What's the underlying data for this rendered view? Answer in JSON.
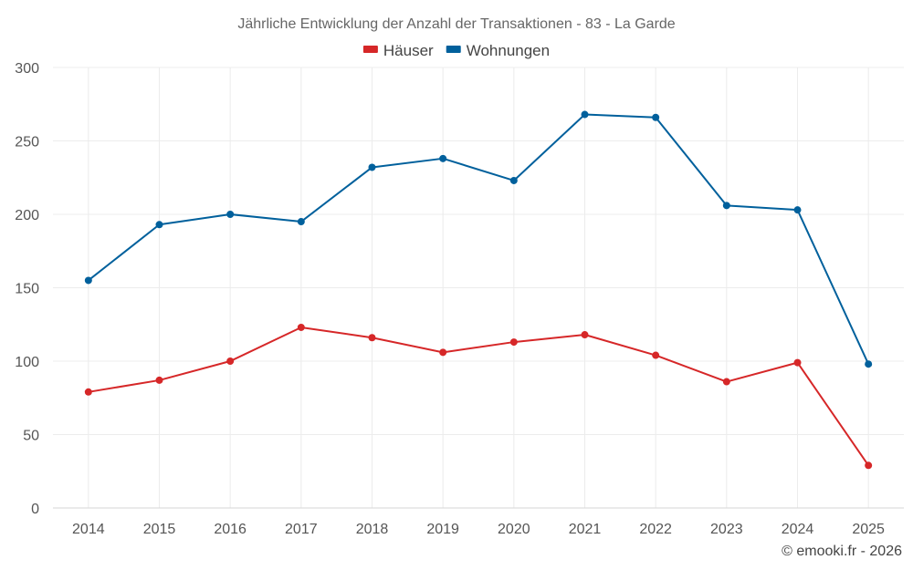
{
  "chart_data": {
    "type": "line",
    "title": "Jährliche Entwicklung der Anzahl der Transaktionen - 83 - La Garde",
    "xlabel": "",
    "ylabel": "",
    "categories": [
      "2014",
      "2015",
      "2016",
      "2017",
      "2018",
      "2019",
      "2020",
      "2021",
      "2022",
      "2023",
      "2024",
      "2025"
    ],
    "ylim": [
      0,
      300
    ],
    "yticks": [
      0,
      50,
      100,
      150,
      200,
      250,
      300
    ],
    "grid": true,
    "legend_position": "top-center",
    "series": [
      {
        "name": "Häuser",
        "color": "#d62728",
        "values": [
          79,
          87,
          100,
          123,
          116,
          106,
          113,
          118,
          104,
          86,
          99,
          29
        ]
      },
      {
        "name": "Wohnungen",
        "color": "#00609c",
        "values": [
          155,
          193,
          200,
          195,
          232,
          238,
          223,
          268,
          266,
          206,
          203,
          98
        ]
      }
    ],
    "credit": "© emooki.fr - 2026"
  }
}
